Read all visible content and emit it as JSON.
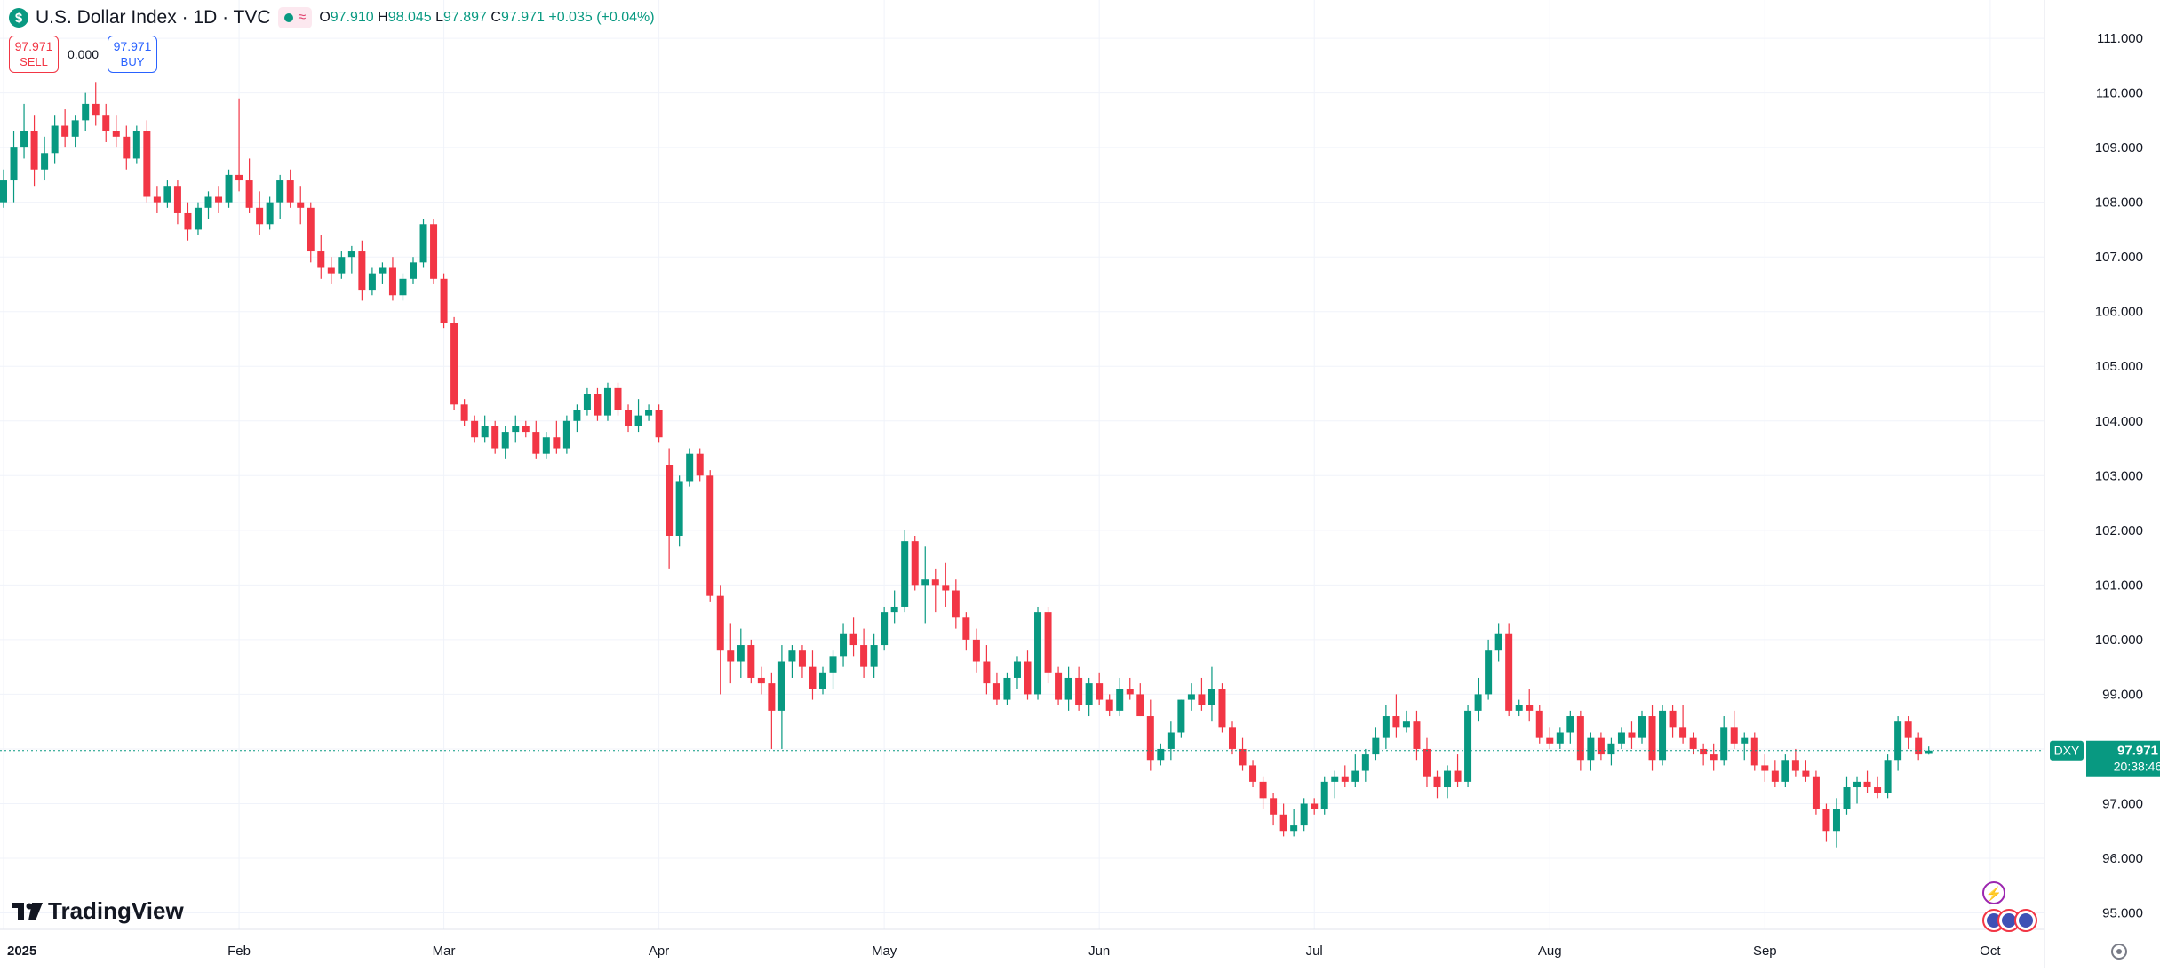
{
  "header": {
    "symbol_badge": "$",
    "title": "U.S. Dollar Index · 1D · TVC",
    "status_symbol": "≈",
    "ohlc": [
      {
        "key": "O",
        "value": "97.910"
      },
      {
        "key": "H",
        "value": "98.045"
      },
      {
        "key": "L",
        "value": "97.897"
      },
      {
        "key": "C",
        "value": "97.971"
      }
    ],
    "change": "+0.035 (+0.04%)"
  },
  "trade": {
    "sell_price": "97.971",
    "sell_label": "SELL",
    "spread": "0.000",
    "buy_price": "97.971",
    "buy_label": "BUY"
  },
  "branding": {
    "logo_text": "TradingView"
  },
  "colors": {
    "up": "#089981",
    "down": "#f23645",
    "grid": "#f0f3fa",
    "axis_text": "#131722"
  },
  "chart_data": {
    "type": "candlestick",
    "symbol": "DXY",
    "interval": "1D",
    "last_price_label": "97.971",
    "countdown": "20:38:46",
    "ylim": [
      94.7,
      111.7
    ],
    "y_ticks": [
      95,
      96,
      97,
      98,
      99,
      100,
      101,
      102,
      103,
      104,
      105,
      106,
      107,
      108,
      109,
      110,
      111
    ],
    "y_tick_labels": [
      "95.000",
      "96.000",
      "97.000",
      "98.000",
      "99.000",
      "100.000",
      "101.000",
      "102.000",
      "103.000",
      "104.000",
      "105.000",
      "106.000",
      "107.000",
      "108.000",
      "109.000",
      "110.000",
      "111.000"
    ],
    "x_ticks": [
      {
        "label": "2025",
        "index": 0
      },
      {
        "label": "Feb",
        "index": 23
      },
      {
        "label": "Mar",
        "index": 43
      },
      {
        "label": "Apr",
        "index": 64
      },
      {
        "label": "May",
        "index": 86
      },
      {
        "label": "Jun",
        "index": 107
      },
      {
        "label": "Jul",
        "index": 128
      },
      {
        "label": "Aug",
        "index": 151
      },
      {
        "label": "Sep",
        "index": 172
      },
      {
        "label": "Oct",
        "index": 194
      }
    ],
    "ohlc": [
      [
        108.0,
        108.6,
        107.9,
        108.4
      ],
      [
        108.4,
        109.3,
        108.0,
        109.0
      ],
      [
        109.0,
        109.8,
        108.8,
        109.3
      ],
      [
        109.3,
        109.6,
        108.3,
        108.6
      ],
      [
        108.6,
        109.2,
        108.4,
        108.9
      ],
      [
        108.9,
        109.6,
        108.7,
        109.4
      ],
      [
        109.4,
        109.7,
        109.0,
        109.2
      ],
      [
        109.2,
        109.6,
        109.0,
        109.5
      ],
      [
        109.5,
        110.0,
        109.3,
        109.8
      ],
      [
        109.8,
        110.2,
        109.4,
        109.6
      ],
      [
        109.6,
        109.8,
        109.1,
        109.3
      ],
      [
        109.3,
        109.6,
        109.0,
        109.2
      ],
      [
        109.2,
        109.4,
        108.6,
        108.8
      ],
      [
        108.8,
        109.4,
        108.7,
        109.3
      ],
      [
        109.3,
        109.5,
        108.0,
        108.1
      ],
      [
        108.1,
        108.3,
        107.8,
        108.0
      ],
      [
        108.0,
        108.4,
        107.9,
        108.3
      ],
      [
        108.3,
        108.4,
        107.6,
        107.8
      ],
      [
        107.8,
        108.0,
        107.3,
        107.5
      ],
      [
        107.5,
        108.0,
        107.4,
        107.9
      ],
      [
        107.9,
        108.2,
        107.7,
        108.1
      ],
      [
        108.1,
        108.3,
        107.8,
        108.0
      ],
      [
        108.0,
        108.6,
        107.9,
        108.5
      ],
      [
        108.5,
        109.9,
        108.2,
        108.4
      ],
      [
        108.4,
        108.8,
        107.8,
        107.9
      ],
      [
        107.9,
        108.2,
        107.4,
        107.6
      ],
      [
        107.6,
        108.1,
        107.5,
        108.0
      ],
      [
        108.0,
        108.5,
        107.7,
        108.4
      ],
      [
        108.4,
        108.6,
        107.9,
        108.0
      ],
      [
        108.0,
        108.3,
        107.6,
        107.9
      ],
      [
        107.9,
        108.0,
        106.9,
        107.1
      ],
      [
        107.1,
        107.4,
        106.6,
        106.8
      ],
      [
        106.8,
        107.0,
        106.5,
        106.7
      ],
      [
        106.7,
        107.1,
        106.6,
        107.0
      ],
      [
        107.0,
        107.2,
        106.7,
        107.1
      ],
      [
        107.1,
        107.3,
        106.2,
        106.4
      ],
      [
        106.4,
        106.8,
        106.3,
        106.7
      ],
      [
        106.7,
        106.9,
        106.5,
        106.8
      ],
      [
        106.8,
        107.0,
        106.2,
        106.3
      ],
      [
        106.3,
        106.7,
        106.2,
        106.6
      ],
      [
        106.6,
        107.0,
        106.5,
        106.9
      ],
      [
        106.9,
        107.7,
        106.8,
        107.6
      ],
      [
        107.6,
        107.7,
        106.5,
        106.6
      ],
      [
        106.6,
        106.7,
        105.7,
        105.8
      ],
      [
        105.8,
        105.9,
        104.2,
        104.3
      ],
      [
        104.3,
        104.4,
        103.9,
        104.0
      ],
      [
        104.0,
        104.1,
        103.6,
        103.7
      ],
      [
        103.7,
        104.1,
        103.6,
        103.9
      ],
      [
        103.9,
        104.0,
        103.4,
        103.5
      ],
      [
        103.5,
        103.9,
        103.3,
        103.8
      ],
      [
        103.8,
        104.1,
        103.6,
        103.9
      ],
      [
        103.9,
        104.0,
        103.7,
        103.8
      ],
      [
        103.8,
        104.0,
        103.3,
        103.4
      ],
      [
        103.4,
        103.8,
        103.3,
        103.7
      ],
      [
        103.7,
        104.0,
        103.4,
        103.5
      ],
      [
        103.5,
        104.1,
        103.4,
        104.0
      ],
      [
        104.0,
        104.3,
        103.8,
        104.2
      ],
      [
        104.2,
        104.6,
        104.1,
        104.5
      ],
      [
        104.5,
        104.6,
        104.0,
        104.1
      ],
      [
        104.1,
        104.7,
        104.0,
        104.6
      ],
      [
        104.6,
        104.7,
        104.1,
        104.2
      ],
      [
        104.2,
        104.3,
        103.8,
        103.9
      ],
      [
        103.9,
        104.4,
        103.8,
        104.1
      ],
      [
        104.1,
        104.3,
        104.0,
        104.2
      ],
      [
        104.2,
        104.3,
        103.6,
        103.7
      ],
      [
        103.2,
        103.5,
        101.3,
        101.9
      ],
      [
        101.9,
        103.0,
        101.7,
        102.9
      ],
      [
        102.9,
        103.5,
        102.8,
        103.4
      ],
      [
        103.4,
        103.5,
        102.9,
        103.0
      ],
      [
        103.0,
        103.1,
        100.7,
        100.8
      ],
      [
        100.8,
        101.0,
        99.0,
        99.8
      ],
      [
        99.8,
        100.3,
        99.2,
        99.6
      ],
      [
        99.6,
        100.2,
        99.3,
        99.9
      ],
      [
        99.9,
        100.0,
        99.2,
        99.3
      ],
      [
        99.3,
        99.5,
        99.0,
        99.2
      ],
      [
        99.2,
        99.4,
        98.0,
        98.7
      ],
      [
        98.7,
        99.9,
        98.0,
        99.6
      ],
      [
        99.6,
        99.9,
        99.3,
        99.8
      ],
      [
        99.8,
        99.9,
        99.3,
        99.5
      ],
      [
        99.5,
        99.8,
        98.9,
        99.1
      ],
      [
        99.1,
        99.5,
        99.0,
        99.4
      ],
      [
        99.4,
        99.8,
        99.1,
        99.7
      ],
      [
        99.7,
        100.3,
        99.5,
        100.1
      ],
      [
        100.1,
        100.4,
        99.7,
        99.9
      ],
      [
        99.9,
        100.2,
        99.3,
        99.5
      ],
      [
        99.5,
        100.1,
        99.3,
        99.9
      ],
      [
        99.9,
        100.6,
        99.8,
        100.5
      ],
      [
        100.5,
        100.9,
        100.3,
        100.6
      ],
      [
        100.6,
        102.0,
        100.5,
        101.8
      ],
      [
        101.8,
        101.9,
        100.9,
        101.0
      ],
      [
        101.0,
        101.7,
        100.3,
        101.1
      ],
      [
        101.1,
        101.3,
        100.5,
        101.0
      ],
      [
        101.0,
        101.4,
        100.6,
        100.9
      ],
      [
        100.9,
        101.1,
        100.2,
        100.4
      ],
      [
        100.4,
        100.5,
        99.8,
        100.0
      ],
      [
        100.0,
        100.2,
        99.4,
        99.6
      ],
      [
        99.6,
        99.9,
        99.0,
        99.2
      ],
      [
        99.2,
        99.4,
        98.8,
        98.9
      ],
      [
        98.9,
        99.4,
        98.8,
        99.3
      ],
      [
        99.3,
        99.7,
        99.1,
        99.6
      ],
      [
        99.6,
        99.8,
        98.9,
        99.0
      ],
      [
        99.0,
        100.6,
        98.9,
        100.5
      ],
      [
        100.5,
        100.6,
        99.2,
        99.4
      ],
      [
        99.4,
        99.5,
        98.8,
        98.9
      ],
      [
        98.9,
        99.5,
        98.7,
        99.3
      ],
      [
        99.3,
        99.5,
        98.7,
        98.8
      ],
      [
        98.8,
        99.3,
        98.6,
        99.2
      ],
      [
        99.2,
        99.4,
        98.8,
        98.9
      ],
      [
        98.9,
        99.0,
        98.6,
        98.7
      ],
      [
        98.7,
        99.3,
        98.6,
        99.1
      ],
      [
        99.1,
        99.3,
        98.9,
        99.0
      ],
      [
        99.0,
        99.2,
        98.6,
        98.6
      ],
      [
        98.6,
        98.9,
        97.6,
        97.8
      ],
      [
        97.8,
        98.1,
        97.7,
        98.0
      ],
      [
        98.0,
        98.5,
        97.8,
        98.3
      ],
      [
        98.3,
        98.9,
        98.2,
        98.9
      ],
      [
        98.9,
        99.2,
        98.7,
        99.0
      ],
      [
        99.0,
        99.3,
        98.7,
        98.8
      ],
      [
        98.8,
        99.5,
        98.5,
        99.1
      ],
      [
        99.1,
        99.2,
        98.3,
        98.4
      ],
      [
        98.4,
        98.5,
        97.9,
        98.0
      ],
      [
        98.0,
        98.2,
        97.6,
        97.7
      ],
      [
        97.7,
        97.8,
        97.3,
        97.4
      ],
      [
        97.4,
        97.5,
        96.9,
        97.1
      ],
      [
        97.1,
        97.2,
        96.6,
        96.8
      ],
      [
        96.8,
        97.0,
        96.4,
        96.5
      ],
      [
        96.5,
        96.9,
        96.4,
        96.6
      ],
      [
        96.6,
        97.1,
        96.5,
        97.0
      ],
      [
        97.0,
        97.1,
        96.8,
        96.9
      ],
      [
        96.9,
        97.5,
        96.8,
        97.4
      ],
      [
        97.4,
        97.6,
        97.1,
        97.5
      ],
      [
        97.5,
        97.7,
        97.3,
        97.4
      ],
      [
        97.4,
        97.9,
        97.3,
        97.6
      ],
      [
        97.6,
        98.0,
        97.4,
        97.9
      ],
      [
        97.9,
        98.4,
        97.8,
        98.2
      ],
      [
        98.2,
        98.8,
        98.0,
        98.6
      ],
      [
        98.6,
        99.0,
        98.2,
        98.4
      ],
      [
        98.4,
        98.7,
        98.3,
        98.5
      ],
      [
        98.5,
        98.7,
        97.8,
        98.0
      ],
      [
        98.0,
        98.2,
        97.3,
        97.5
      ],
      [
        97.5,
        97.6,
        97.1,
        97.3
      ],
      [
        97.3,
        97.7,
        97.1,
        97.6
      ],
      [
        97.6,
        97.9,
        97.3,
        97.4
      ],
      [
        97.4,
        98.8,
        97.3,
        98.7
      ],
      [
        98.7,
        99.3,
        98.5,
        99.0
      ],
      [
        99.0,
        100.0,
        98.9,
        99.8
      ],
      [
        99.8,
        100.3,
        99.6,
        100.1
      ],
      [
        100.1,
        100.3,
        98.6,
        98.7
      ],
      [
        98.7,
        98.9,
        98.6,
        98.8
      ],
      [
        98.8,
        99.1,
        98.5,
        98.7
      ],
      [
        98.7,
        98.8,
        98.1,
        98.2
      ],
      [
        98.2,
        98.4,
        98.0,
        98.1
      ],
      [
        98.1,
        98.4,
        98.0,
        98.3
      ],
      [
        98.3,
        98.7,
        98.1,
        98.6
      ],
      [
        98.6,
        98.7,
        97.6,
        97.8
      ],
      [
        97.8,
        98.3,
        97.6,
        98.2
      ],
      [
        98.2,
        98.3,
        97.8,
        97.9
      ],
      [
        97.9,
        98.2,
        97.7,
        98.1
      ],
      [
        98.1,
        98.4,
        98.0,
        98.3
      ],
      [
        98.3,
        98.5,
        98.0,
        98.2
      ],
      [
        98.2,
        98.7,
        98.1,
        98.6
      ],
      [
        98.6,
        98.8,
        97.6,
        97.8
      ],
      [
        97.8,
        98.8,
        97.7,
        98.7
      ],
      [
        98.7,
        98.8,
        98.2,
        98.4
      ],
      [
        98.4,
        98.8,
        98.1,
        98.2
      ],
      [
        98.2,
        98.3,
        97.9,
        98.0
      ],
      [
        98.0,
        98.1,
        97.7,
        97.9
      ],
      [
        97.9,
        98.1,
        97.6,
        97.8
      ],
      [
        97.8,
        98.6,
        97.7,
        98.4
      ],
      [
        98.4,
        98.7,
        98.0,
        98.1
      ],
      [
        98.1,
        98.3,
        97.8,
        98.2
      ],
      [
        98.2,
        98.3,
        97.6,
        97.7
      ],
      [
        97.7,
        97.9,
        97.4,
        97.6
      ],
      [
        97.6,
        97.8,
        97.3,
        97.4
      ],
      [
        97.4,
        97.9,
        97.3,
        97.8
      ],
      [
        97.8,
        98.0,
        97.5,
        97.6
      ],
      [
        97.6,
        97.8,
        97.4,
        97.5
      ],
      [
        97.5,
        97.6,
        96.8,
        96.9
      ],
      [
        96.9,
        97.0,
        96.3,
        96.5
      ],
      [
        96.5,
        97.1,
        96.2,
        96.9
      ],
      [
        96.9,
        97.5,
        96.8,
        97.3
      ],
      [
        97.3,
        97.5,
        97.0,
        97.4
      ],
      [
        97.4,
        97.6,
        97.2,
        97.3
      ],
      [
        97.3,
        97.5,
        97.1,
        97.2
      ],
      [
        97.2,
        97.9,
        97.1,
        97.8
      ],
      [
        97.8,
        98.6,
        97.6,
        98.5
      ],
      [
        98.5,
        98.6,
        98.0,
        98.2
      ],
      [
        98.2,
        98.3,
        97.8,
        97.9
      ],
      [
        97.91,
        98.045,
        97.897,
        97.971
      ]
    ]
  }
}
